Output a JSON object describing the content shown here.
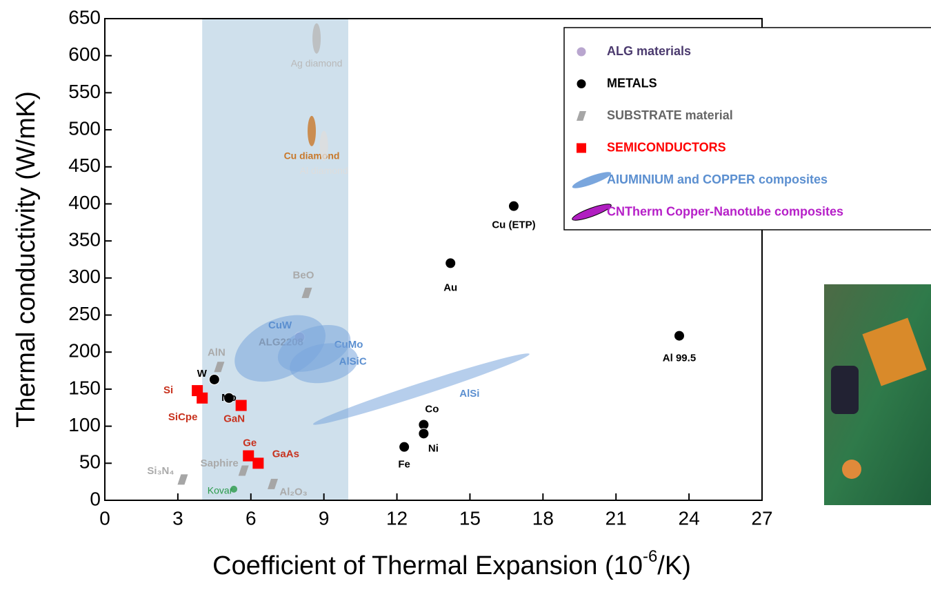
{
  "chart_data": {
    "type": "scatter",
    "x_label": "Coefficient of Thermal Expansion (10",
    "x_label_sup": "-6",
    "x_label_end": "/K)",
    "y_label": "Thermal conductivity (W/mK)",
    "xlim": [
      0,
      27
    ],
    "ylim": [
      0,
      650
    ],
    "xticks": [
      0,
      3,
      6,
      9,
      12,
      15,
      18,
      21,
      24,
      27
    ],
    "yticks": [
      0,
      50,
      100,
      150,
      200,
      250,
      300,
      350,
      400,
      450,
      500,
      550,
      600,
      650
    ],
    "highlight_band": [
      4,
      10
    ],
    "legend": "top-right",
    "series": [
      {
        "name": "ALG materials",
        "color": "#b9a6cf",
        "text_color": "#4b3a6e",
        "marker": "circle",
        "x": [
          8.0
        ],
        "values": [
          220
        ],
        "labels": [
          "ALG2208"
        ]
      },
      {
        "name": "METALS",
        "color": "#000000",
        "text_color": "#000000",
        "marker": "circle",
        "x": [
          16.8,
          14.2,
          23.6,
          4.5,
          5.1,
          13.1,
          13.1,
          12.3
        ],
        "values": [
          397,
          320,
          222,
          163,
          138,
          102,
          90,
          72
        ],
        "labels": [
          "Cu (ETP)",
          "Au",
          "Al 99.5",
          "W",
          "Mo",
          "Co",
          "Ni",
          "Fe"
        ]
      },
      {
        "name": "SUBSTRATE material",
        "color": "#a6a6a6",
        "text_color": "#666666",
        "marker": "slant",
        "x": [
          8.3,
          4.7,
          5.7,
          6.9,
          3.2
        ],
        "values": [
          280,
          180,
          40,
          22,
          28
        ],
        "labels": [
          "BeO",
          "AlN",
          "Saphire",
          "Al₂O₃",
          "Si₃N₄"
        ]
      },
      {
        "name": "SEMICONDUCTORS",
        "color": "#ff0000",
        "text_color": "#ff0000",
        "marker": "square",
        "x": [
          3.8,
          4.0,
          5.6,
          5.9,
          6.3
        ],
        "values": [
          148,
          138,
          128,
          60,
          50
        ],
        "labels": [
          "Si",
          "SiCpe",
          "GaN",
          "Ge",
          "GaAs"
        ]
      },
      {
        "name": "AIUMINIUM and COPPER composites",
        "color": "#7aa6dd",
        "text_color": "#5b8fd0",
        "marker": "ellipse",
        "x": [
          7.2,
          8.6,
          9.0,
          13.0
        ],
        "values": [
          205,
          205,
          185,
          150
        ],
        "labels": [
          "CuW",
          "CuMo",
          "AlSiC",
          "AlSi"
        ]
      },
      {
        "name": "CNTherm Copper-Nanotube composites",
        "color": "#b01ec0",
        "text_color": "#b620c8",
        "marker": "ellipse",
        "x": [],
        "values": [],
        "labels": []
      }
    ],
    "annotations": [
      {
        "text": "Ag diamond",
        "x": 8.7,
        "y": 600,
        "color": "#b8b8b8"
      },
      {
        "text": "Cu diamond",
        "x": 8.5,
        "y": 475,
        "color": "#c8782a"
      },
      {
        "text": "Al diamond",
        "x": 9.0,
        "y": 455,
        "color": "#dddddd"
      },
      {
        "text": "Kovar",
        "x": 5.3,
        "y": 15,
        "color": "#2a9a4a"
      }
    ]
  }
}
